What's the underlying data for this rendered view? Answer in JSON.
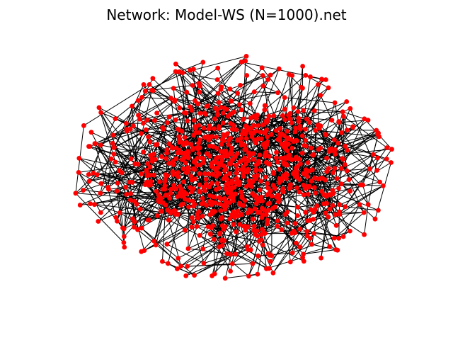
{
  "title": "Network: Model-WS (N=1000).net",
  "network": {
    "model": "Watts-Strogatz",
    "node_count": 1000,
    "node_color": "#ff0000",
    "edge_color": "#000000",
    "background": "#ffffff",
    "layout": "force-directed",
    "axes_visible": false
  }
}
